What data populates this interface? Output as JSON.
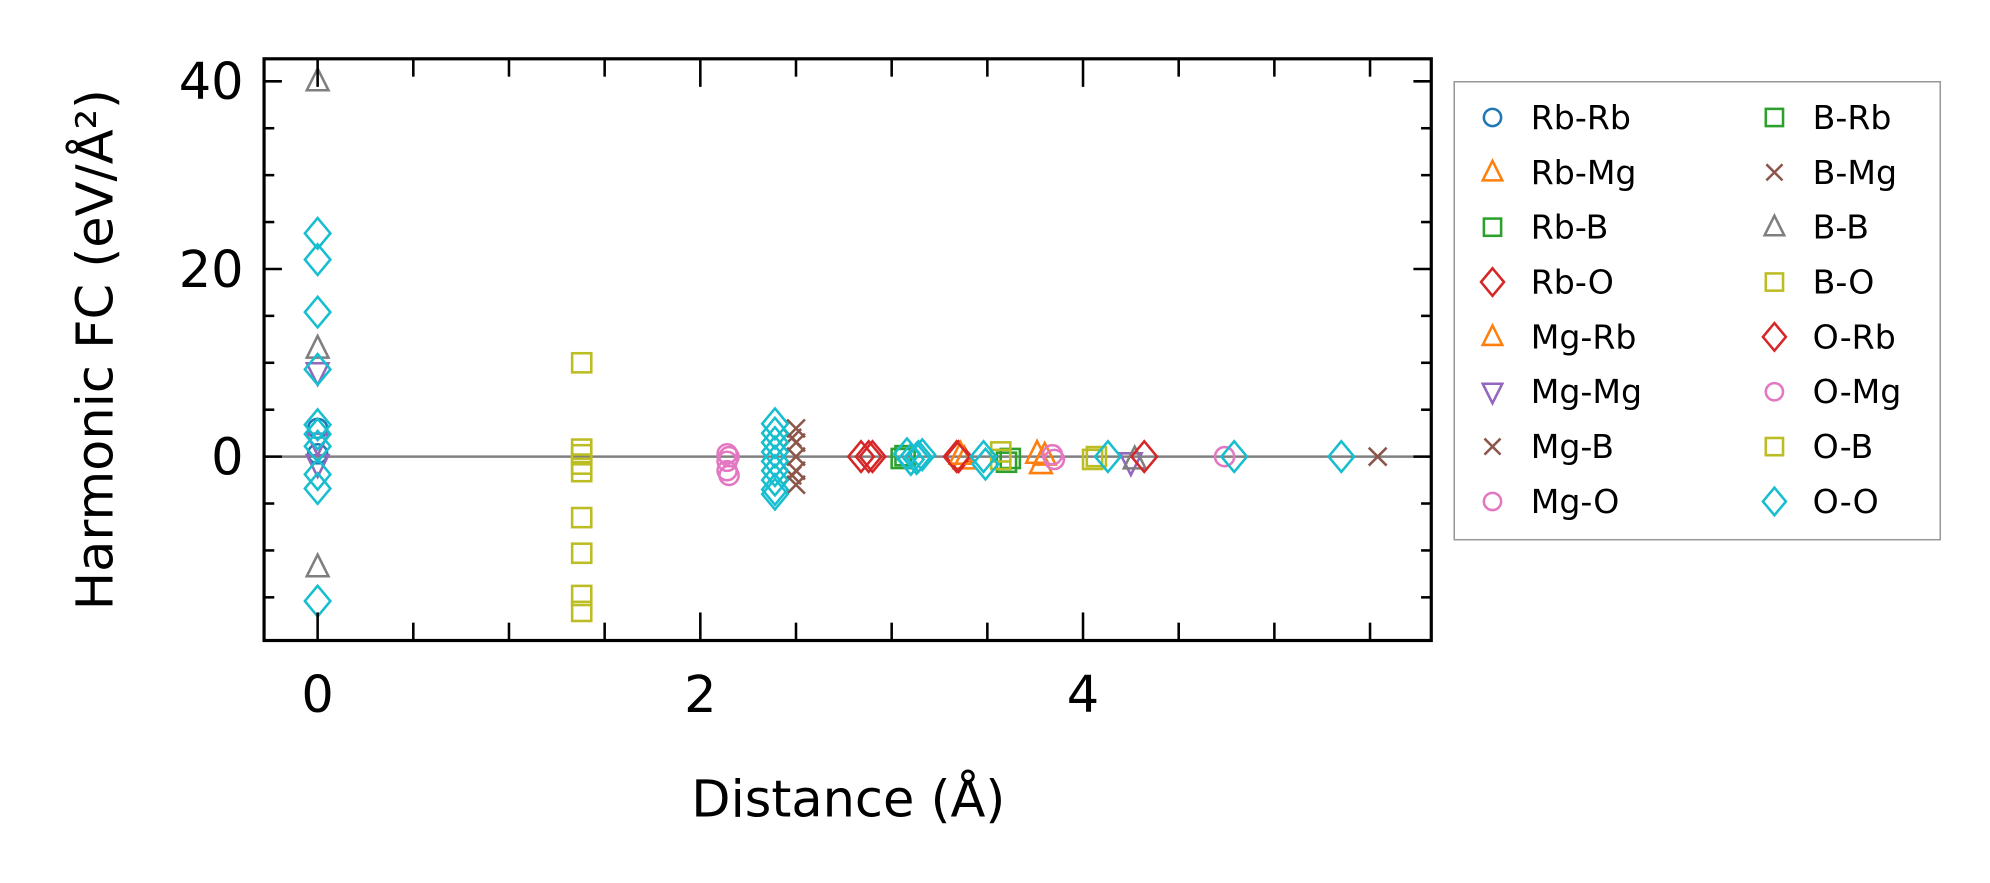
{
  "chart_data": {
    "type": "scatter",
    "title": "",
    "xlabel": "Distance (Å)",
    "ylabel": "Harmonic FC (eV/Å²)",
    "xlim": [
      -0.28,
      5.82
    ],
    "ylim": [
      -19.6,
      42.4
    ],
    "xticks": [
      0,
      2,
      4
    ],
    "yticks": [
      0,
      20,
      40
    ],
    "x_minor_step": 0.5,
    "y_minor_step": 5,
    "zero_line": true,
    "grid": false,
    "legend_placement": "outside-right",
    "series": [
      {
        "name": "Rb-Rb",
        "marker": "circle",
        "color": "#1f77b4",
        "points": [
          [
            0,
            3
          ],
          [
            0,
            0.3
          ]
        ]
      },
      {
        "name": "Rb-Mg",
        "marker": "triangle-up",
        "color": "#ff7f0e",
        "points": [
          [
            3.38,
            -0.3
          ],
          [
            3.78,
            -0.8
          ],
          [
            3.76,
            0.3
          ]
        ]
      },
      {
        "name": "Rb-B",
        "marker": "square",
        "color": "#2ca02c",
        "points": [
          [
            3.05,
            -0.2
          ],
          [
            3.6,
            -0.6
          ]
        ]
      },
      {
        "name": "Rb-O",
        "marker": "diamond",
        "color": "#d62728",
        "points": [
          [
            2.84,
            0
          ],
          [
            2.9,
            0
          ],
          [
            3.35,
            0
          ]
        ]
      },
      {
        "name": "Mg-Rb",
        "marker": "triangle-up",
        "color": "#ff7f0e",
        "points": [
          [
            3.36,
            0.2
          ],
          [
            3.8,
            0.1
          ]
        ]
      },
      {
        "name": "Mg-Mg",
        "marker": "triangle-down",
        "color": "#9467bd",
        "points": [
          [
            0,
            9
          ],
          [
            0,
            1.5
          ],
          [
            0,
            -0.8
          ],
          [
            4.25,
            -0.6
          ]
        ]
      },
      {
        "name": "Mg-B",
        "marker": "x",
        "color": "#8c564b",
        "points": [
          [
            2.5,
            3
          ],
          [
            2.5,
            1.5
          ],
          [
            2.5,
            0
          ],
          [
            2.5,
            -1.5
          ],
          [
            2.5,
            -3
          ]
        ]
      },
      {
        "name": "Mg-O",
        "marker": "circle",
        "color": "#e377c2",
        "points": [
          [
            2.14,
            0.3
          ],
          [
            2.14,
            -0.5
          ],
          [
            2.14,
            -1.5
          ],
          [
            2.15,
            -2
          ]
        ]
      },
      {
        "name": "B-Rb",
        "marker": "square",
        "color": "#2ca02c",
        "points": [
          [
            3.07,
            0.1
          ],
          [
            3.62,
            -0.2
          ]
        ]
      },
      {
        "name": "B-Mg",
        "marker": "x",
        "color": "#8c564b",
        "points": [
          [
            2.48,
            2
          ],
          [
            2.48,
            -2
          ],
          [
            5.54,
            0
          ]
        ]
      },
      {
        "name": "B-B",
        "marker": "triangle-up",
        "color": "#7f7f7f",
        "points": [
          [
            0,
            40
          ],
          [
            0,
            11.5
          ],
          [
            0,
            -11.8
          ],
          [
            4.27,
            -0.3
          ]
        ]
      },
      {
        "name": "B-O",
        "marker": "square",
        "color": "#bcbd22",
        "points": [
          [
            1.38,
            10
          ],
          [
            1.38,
            0.8
          ],
          [
            1.38,
            -0.8
          ],
          [
            1.38,
            -1.6
          ],
          [
            1.38,
            -6.5
          ],
          [
            1.38,
            -10.3
          ],
          [
            1.38,
            -14.8
          ],
          [
            1.38,
            -16.5
          ],
          [
            3.57,
            0.5
          ],
          [
            4.07,
            0
          ]
        ]
      },
      {
        "name": "O-Rb",
        "marker": "diamond",
        "color": "#d62728",
        "points": [
          [
            2.88,
            0
          ],
          [
            3.34,
            0
          ],
          [
            4.32,
            0
          ]
        ]
      },
      {
        "name": "O-Mg",
        "marker": "circle",
        "color": "#e377c2",
        "points": [
          [
            2.15,
            0
          ],
          [
            3.84,
            0.2
          ],
          [
            3.85,
            -0.3
          ],
          [
            4.74,
            0
          ]
        ]
      },
      {
        "name": "O-B",
        "marker": "square",
        "color": "#bcbd22",
        "points": [
          [
            1.38,
            0.2
          ],
          [
            3.57,
            -0.3
          ],
          [
            4.05,
            -0.3
          ]
        ]
      },
      {
        "name": "O-O",
        "marker": "diamond",
        "color": "#17becf",
        "points": [
          [
            0,
            23.8
          ],
          [
            0,
            21
          ],
          [
            0,
            15.4
          ],
          [
            0,
            9.3
          ],
          [
            0,
            3.4
          ],
          [
            0,
            2.4
          ],
          [
            0,
            1.1
          ],
          [
            0,
            -1.9
          ],
          [
            0,
            -3.4
          ],
          [
            0,
            -15.4
          ],
          [
            2.39,
            3.5
          ],
          [
            2.39,
            2.5
          ],
          [
            2.39,
            1.5
          ],
          [
            2.39,
            0.5
          ],
          [
            2.39,
            -0.5
          ],
          [
            2.39,
            -1.5
          ],
          [
            2.39,
            -2.5
          ],
          [
            2.39,
            -3.5
          ],
          [
            2.39,
            -4
          ],
          [
            3.08,
            0.3
          ],
          [
            3.1,
            -0.3
          ],
          [
            3.14,
            0
          ],
          [
            3.16,
            0.2
          ],
          [
            3.13,
            -0.2
          ],
          [
            3.48,
            0
          ],
          [
            3.49,
            -0.8
          ],
          [
            4.13,
            0
          ],
          [
            4.79,
            0
          ],
          [
            5.35,
            0
          ]
        ]
      }
    ]
  }
}
